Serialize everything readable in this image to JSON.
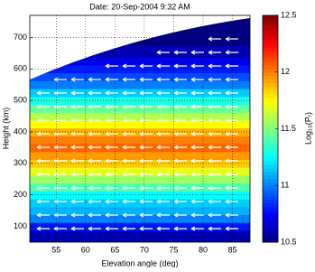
{
  "chart_data": {
    "type": "heatmap",
    "title": "Date: 20-Sep-2004  9:32 AM",
    "x_label": "Elevation angle (deg)",
    "y_label": "Height (km)",
    "colorbar_label": "Log₁₀(Pᵣ)",
    "colormap": "jet",
    "y": [
      50,
      75,
      100,
      125,
      150,
      175,
      200,
      225,
      250,
      275,
      300,
      325,
      350,
      375,
      400,
      425,
      450,
      475,
      500,
      525,
      550,
      575,
      600,
      625,
      650,
      700,
      770
    ],
    "values": [
      10.55,
      10.6,
      10.8,
      11.0,
      11.1,
      11.15,
      11.25,
      11.4,
      11.55,
      11.7,
      11.85,
      11.95,
      12.05,
      12.0,
      11.9,
      11.75,
      11.6,
      11.45,
      11.3,
      11.15,
      11.0,
      10.9,
      10.8,
      10.7,
      10.6,
      10.5,
      10.5
    ],
    "xlim": [
      50.5,
      88
    ],
    "xticks": [
      55,
      60,
      65,
      70,
      75,
      80,
      85
    ],
    "ylim": [
      50,
      770
    ],
    "yticks": [
      100,
      200,
      300,
      400,
      500,
      600,
      700
    ],
    "clim": [
      10.5,
      12.5
    ],
    "cticks": [
      10.5,
      11,
      11.5,
      12,
      12.5
    ],
    "grid": true
  }
}
